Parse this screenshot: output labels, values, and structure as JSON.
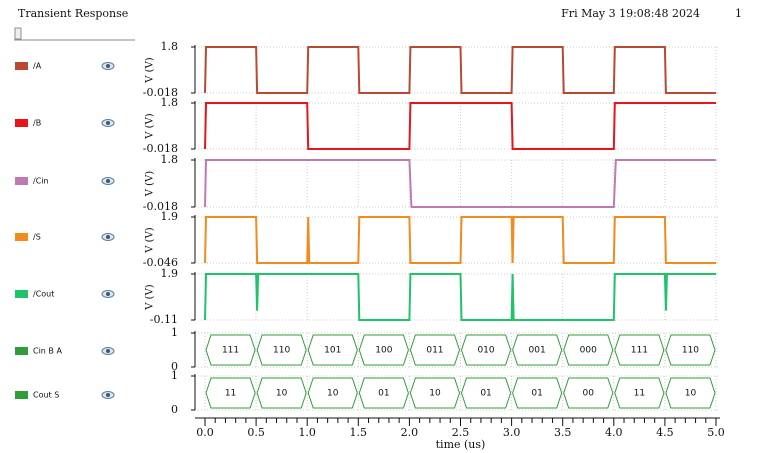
{
  "header": {
    "title": "Transient Response",
    "timestamp": "Fri May 3 19:08:48 2024",
    "page": "1"
  },
  "time_axis": {
    "label": "time (us)",
    "xlim": [
      0,
      5
    ],
    "xticks": [
      {
        "value": 0,
        "label": "0.0"
      },
      0.5,
      {
        "value": 1,
        "label": "1.0"
      },
      1.5,
      {
        "value": 2,
        "label": "2.0"
      },
      2.5,
      {
        "value": 3,
        "label": "3.0"
      },
      3.5,
      {
        "value": 4,
        "label": "4.0"
      },
      4.5,
      {
        "value": 5,
        "label": "5.0"
      }
    ]
  },
  "chart_data": [
    {
      "type": "line",
      "name": "/A",
      "color": "#b94a32",
      "ylabel": "V (V)",
      "ylim": [
        -0.018,
        1.8
      ],
      "yticks": [
        -0.018,
        1.8
      ],
      "x": [
        0,
        0.01,
        0.5,
        0.51,
        1,
        1.01,
        1.5,
        1.51,
        2,
        2.01,
        2.5,
        2.51,
        3,
        3.01,
        3.5,
        3.51,
        4,
        4.01,
        4.5,
        4.51,
        5
      ],
      "values": [
        -0.018,
        1.8,
        1.8,
        -0.018,
        -0.018,
        1.8,
        1.8,
        -0.018,
        -0.018,
        1.8,
        1.8,
        -0.018,
        -0.018,
        1.8,
        1.8,
        -0.018,
        -0.018,
        1.8,
        1.8,
        -0.018,
        -0.018
      ]
    },
    {
      "type": "line",
      "name": "/B",
      "color": "#e8141a",
      "ylabel": "V (V)",
      "ylim": [
        -0.018,
        1.8
      ],
      "yticks": [
        -0.018,
        1.8
      ],
      "x": [
        0,
        0.01,
        1,
        1.01,
        2,
        2.01,
        3,
        3.01,
        4,
        4.01,
        5
      ],
      "values": [
        -0.018,
        1.8,
        1.8,
        -0.018,
        -0.018,
        1.8,
        1.8,
        -0.018,
        -0.018,
        1.8,
        1.8
      ]
    },
    {
      "type": "line",
      "name": "/Cin",
      "color": "#c07ab0",
      "ylabel": "V (V)",
      "ylim": [
        -0.018,
        1.8
      ],
      "yticks": [
        -0.018,
        1.8
      ],
      "x": [
        0,
        0.01,
        2,
        2.02,
        4,
        4.02,
        5
      ],
      "values": [
        -0.018,
        1.8,
        1.8,
        -0.018,
        -0.018,
        1.8,
        1.8
      ]
    },
    {
      "type": "line",
      "name": "/S",
      "color": "#f28a1c",
      "ylabel": "V (V)",
      "ylim": [
        -0.046,
        1.9
      ],
      "yticks": [
        -0.046,
        1.9
      ],
      "x": [
        0,
        0.01,
        0.5,
        0.51,
        1,
        1.01,
        1.02,
        1.5,
        1.51,
        2,
        2.01,
        2.5,
        2.51,
        3,
        3.01,
        3.02,
        3.5,
        3.51,
        4,
        4.01,
        4.5,
        4.51,
        5
      ],
      "values": [
        -0.046,
        1.9,
        1.9,
        -0.046,
        -0.046,
        1.9,
        -0.046,
        -0.046,
        1.9,
        1.9,
        -0.046,
        -0.046,
        1.9,
        1.9,
        -0.046,
        1.9,
        1.9,
        -0.046,
        -0.046,
        1.9,
        1.9,
        -0.046,
        -0.046
      ]
    },
    {
      "type": "line",
      "name": "/Cout",
      "color": "#1ec46a",
      "ylabel": "V (V)",
      "ylim": [
        -0.11,
        1.9
      ],
      "yticks": [
        -0.11,
        1.9
      ],
      "x": [
        0,
        0.01,
        0.5,
        0.51,
        0.52,
        1.5,
        1.51,
        2,
        2.01,
        2.5,
        2.51,
        3,
        3.01,
        3.02,
        4,
        4.01,
        4.5,
        4.51,
        4.52,
        5
      ],
      "values": [
        -0.11,
        1.9,
        1.9,
        0.3,
        1.9,
        1.9,
        -0.11,
        -0.11,
        1.9,
        1.9,
        -0.11,
        -0.11,
        1.9,
        -0.11,
        -0.11,
        1.9,
        1.9,
        0.3,
        1.9,
        1.9
      ]
    },
    {
      "type": "bus",
      "name": "Cin B A",
      "color": "#2f9e3a",
      "ylim": [
        0,
        1
      ],
      "yticks": [
        0,
        1
      ],
      "x": [
        0,
        0.5,
        1,
        1.5,
        2,
        2.5,
        3,
        3.5,
        4,
        4.5,
        5
      ],
      "labels": [
        "111",
        "110",
        "101",
        "100",
        "011",
        "010",
        "001",
        "000",
        "111",
        "110"
      ]
    },
    {
      "type": "bus",
      "name": "Cout S",
      "color": "#2f9e3a",
      "ylim": [
        0,
        1
      ],
      "yticks": [
        0,
        1
      ],
      "x": [
        0,
        0.5,
        1,
        1.5,
        2,
        2.5,
        3,
        3.5,
        4,
        4.5,
        5
      ],
      "labels": [
        "11",
        "10",
        "10",
        "01",
        "10",
        "01",
        "01",
        "00",
        "11",
        "10"
      ]
    }
  ]
}
